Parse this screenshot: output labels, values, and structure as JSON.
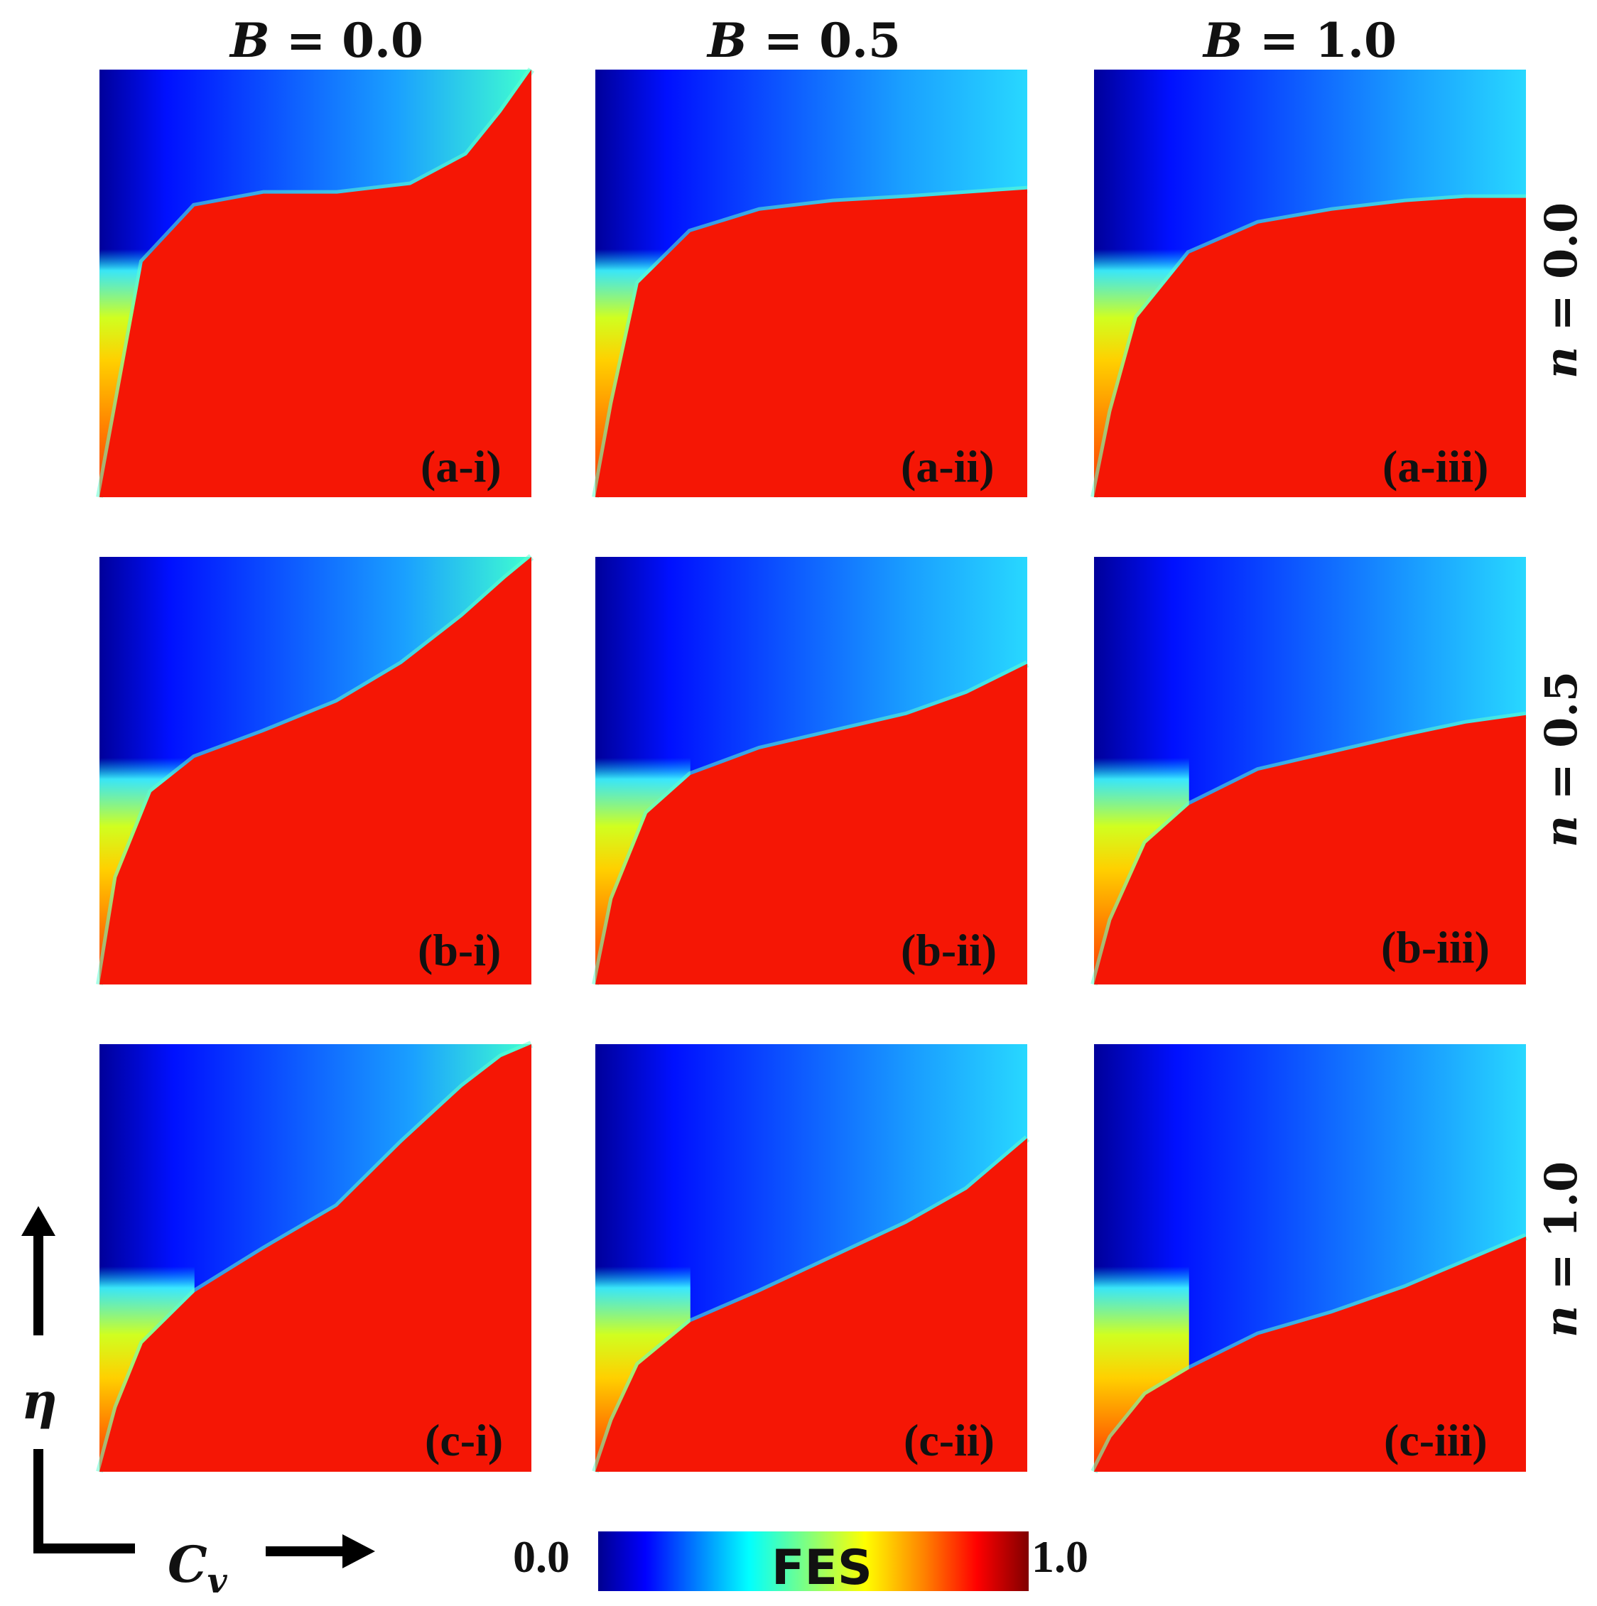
{
  "chart_data": {
    "type": "heatmap",
    "title": "",
    "x_axis_label": "C",
    "x_axis_subscript": "v",
    "y_axis_label": "η",
    "columns_param": "B",
    "rows_param": "n",
    "column_headers": [
      {
        "var": "B",
        "eq": " = ",
        "value": "0.0"
      },
      {
        "var": "B",
        "eq": " = ",
        "value": "0.5"
      },
      {
        "var": "B",
        "eq": " = ",
        "value": "1.0"
      }
    ],
    "row_headers": [
      {
        "var": "n",
        "eq": " = ",
        "value": "0.0"
      },
      {
        "var": "n",
        "eq": " = ",
        "value": "0.5"
      },
      {
        "var": "n",
        "eq": " = ",
        "value": "1.0"
      }
    ],
    "panels": [
      {
        "label": "(a-i)",
        "B": 0.0,
        "n": 0.0,
        "boundary": [
          0.0,
          0.0,
          0.04,
          0.22,
          0.1,
          0.55,
          0.22,
          0.68,
          0.38,
          0.71,
          0.55,
          0.71,
          0.72,
          0.73,
          0.85,
          0.8,
          0.93,
          0.9,
          1.0,
          1.0
        ]
      },
      {
        "label": "(a-ii)",
        "B": 0.5,
        "n": 0.0,
        "boundary": [
          0.0,
          0.0,
          0.04,
          0.22,
          0.1,
          0.5,
          0.22,
          0.62,
          0.38,
          0.67,
          0.55,
          0.69,
          0.72,
          0.7,
          0.86,
          0.71,
          1.0,
          0.72
        ]
      },
      {
        "label": "(a-iii)",
        "B": 1.0,
        "n": 0.0,
        "boundary": [
          0.0,
          0.0,
          0.04,
          0.2,
          0.1,
          0.42,
          0.22,
          0.57,
          0.38,
          0.64,
          0.55,
          0.67,
          0.72,
          0.69,
          0.86,
          0.7,
          1.0,
          0.7
        ]
      },
      {
        "label": "(b-i)",
        "B": 0.0,
        "n": 0.5,
        "boundary": [
          0.0,
          0.0,
          0.04,
          0.25,
          0.12,
          0.45,
          0.22,
          0.53,
          0.38,
          0.59,
          0.55,
          0.66,
          0.7,
          0.75,
          0.84,
          0.86,
          0.94,
          0.95,
          1.0,
          1.0
        ]
      },
      {
        "label": "(b-ii)",
        "B": 0.5,
        "n": 0.5,
        "boundary": [
          0.0,
          0.0,
          0.04,
          0.2,
          0.12,
          0.4,
          0.22,
          0.49,
          0.38,
          0.55,
          0.55,
          0.59,
          0.72,
          0.63,
          0.86,
          0.68,
          1.0,
          0.75
        ]
      },
      {
        "label": "(b-iii)",
        "B": 1.0,
        "n": 0.5,
        "boundary": [
          0.0,
          0.0,
          0.04,
          0.15,
          0.12,
          0.33,
          0.22,
          0.42,
          0.38,
          0.5,
          0.55,
          0.54,
          0.72,
          0.58,
          0.86,
          0.61,
          1.0,
          0.63
        ]
      },
      {
        "label": "(c-i)",
        "B": 0.0,
        "n": 1.0,
        "boundary": [
          0.0,
          0.0,
          0.04,
          0.15,
          0.1,
          0.3,
          0.22,
          0.42,
          0.38,
          0.52,
          0.55,
          0.62,
          0.7,
          0.77,
          0.84,
          0.9,
          0.93,
          0.97,
          1.0,
          1.0
        ]
      },
      {
        "label": "(c-ii)",
        "B": 0.5,
        "n": 1.0,
        "boundary": [
          0.0,
          0.0,
          0.04,
          0.12,
          0.1,
          0.25,
          0.22,
          0.35,
          0.38,
          0.42,
          0.55,
          0.5,
          0.72,
          0.58,
          0.86,
          0.66,
          1.0,
          0.78
        ]
      },
      {
        "label": "(c-iii)",
        "B": 1.0,
        "n": 1.0,
        "boundary": [
          0.0,
          0.0,
          0.04,
          0.08,
          0.12,
          0.18,
          0.22,
          0.24,
          0.38,
          0.32,
          0.55,
          0.37,
          0.72,
          0.43,
          0.86,
          0.49,
          1.0,
          0.55
        ]
      }
    ],
    "colorbar": {
      "label": "FES",
      "min_label": "0.0",
      "max_label": "1.0",
      "min": 0.0,
      "max": 1.0,
      "colormap": "jet",
      "stops": [
        "#00008f",
        "#0000ff",
        "#00ffff",
        "#ffff00",
        "#ff7f00",
        "#ff0000",
        "#800000"
      ]
    }
  }
}
